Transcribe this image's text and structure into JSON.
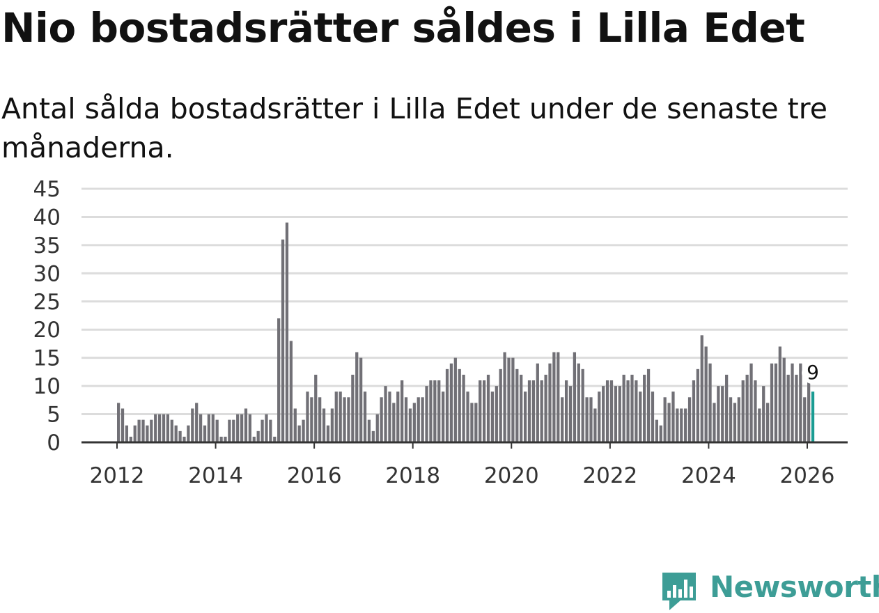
{
  "title": "Nio bostadsrätter såldes i Lilla Edet",
  "subtitle": "Antal sålda bostadsrätter i Lilla Edet under de senaste tre månaderna.",
  "brand": {
    "name": "Newsworthy",
    "color": "#3d9d96",
    "icon": "newsworthy-chart-icon"
  },
  "colors": {
    "bar": "#717076",
    "highlight": "#1a9c93",
    "grid": "#dcdcdc",
    "axis": "#333333"
  },
  "chart_data": {
    "type": "bar",
    "title": "Nio bostadsrätter såldes i Lilla Edet",
    "xlabel": "",
    "ylabel": "",
    "ylim": [
      0,
      45
    ],
    "yticks": [
      "0",
      "5",
      "10",
      "15",
      "20",
      "25",
      "30",
      "35",
      "40",
      "45"
    ],
    "xticks": [
      "2012",
      "2014",
      "2016",
      "2018",
      "2020",
      "2022",
      "2024",
      "2026"
    ],
    "x_start": "2012-01",
    "x_frequency": "monthly",
    "values": [
      7,
      6,
      3,
      1,
      3,
      4,
      4,
      3,
      4,
      5,
      5,
      5,
      5,
      4,
      3,
      2,
      1,
      3,
      6,
      7,
      5,
      3,
      5,
      5,
      4,
      1,
      1,
      4,
      4,
      5,
      5,
      6,
      5,
      1,
      2,
      4,
      5,
      4,
      1,
      22,
      36,
      39,
      18,
      6,
      3,
      4,
      9,
      8,
      12,
      8,
      6,
      3,
      6,
      9,
      9,
      8,
      8,
      12,
      16,
      15,
      9,
      4,
      2,
      5,
      8,
      10,
      9,
      7,
      9,
      11,
      8,
      6,
      7,
      8,
      8,
      10,
      11,
      11,
      11,
      9,
      13,
      14,
      15,
      13,
      12,
      9,
      7,
      7,
      11,
      11,
      12,
      9,
      10,
      13,
      16,
      15,
      15,
      13,
      12,
      9,
      11,
      11,
      14,
      11,
      12,
      14,
      16,
      16,
      8,
      11,
      10,
      16,
      14,
      13,
      8,
      8,
      6,
      9,
      10,
      11,
      11,
      10,
      10,
      12,
      11,
      12,
      11,
      9,
      12,
      13,
      9,
      4,
      3,
      8,
      7,
      9,
      6,
      6,
      6,
      8,
      11,
      13,
      19,
      17,
      14,
      7,
      10,
      10,
      12,
      8,
      7,
      8,
      11,
      12,
      14,
      11,
      6,
      10,
      7,
      14,
      14,
      17,
      15,
      12,
      14,
      12,
      14,
      8,
      11,
      9
    ],
    "highlight_last": true,
    "last_value_label": "9",
    "grid": true
  }
}
